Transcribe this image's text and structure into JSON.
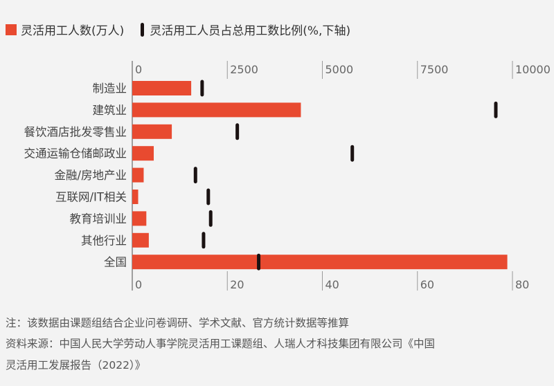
{
  "legend": {
    "bar_label": "灵活用工人数(万人)",
    "marker_label": "灵活用工人员占总用工数比例(%,下轴)"
  },
  "colors": {
    "bar": "#e84a30",
    "marker": "#1a1212",
    "axis": "#888888"
  },
  "chart_data": {
    "type": "bar",
    "orientation": "horizontal",
    "categories": [
      "制造业",
      "建筑业",
      "餐饮酒店批发零售业",
      "交通运输仓储邮政业",
      "金融/房地产业",
      "互联网/IT相关",
      "教育培训业",
      "其他行业",
      "全国"
    ],
    "series": [
      {
        "name": "灵活用工人数(万人)",
        "axis": "top",
        "type": "bar",
        "values": [
          1550,
          4435,
          1040,
          565,
          300,
          155,
          370,
          435,
          9865
        ]
      },
      {
        "name": "灵活用工人员占总用工数比例(%,下轴)",
        "axis": "bottom",
        "type": "marker",
        "values": [
          14.7,
          76.5,
          22.1,
          46.3,
          13.3,
          16.0,
          16.5,
          15.0,
          26.6
        ]
      }
    ],
    "top_axis": {
      "range": [
        0,
        10000
      ],
      "ticks": [
        "0",
        "2500",
        "5000",
        "7500",
        "10000"
      ]
    },
    "bottom_axis": {
      "range": [
        0,
        80
      ],
      "ticks": [
        "0",
        "20",
        "40",
        "60",
        "80"
      ]
    },
    "grid": false,
    "legend_position": "top-left"
  },
  "notes": {
    "note": "注：该数据由课题组结合企业问卷调研、学术文献、官方统计数据等推算",
    "source_line1": "资料来源：中国人民大学劳动人事学院灵活用工课题组、人瑞人才科技集团有限公司《中国",
    "source_line2": "灵活用工发展报告（2022）》"
  }
}
